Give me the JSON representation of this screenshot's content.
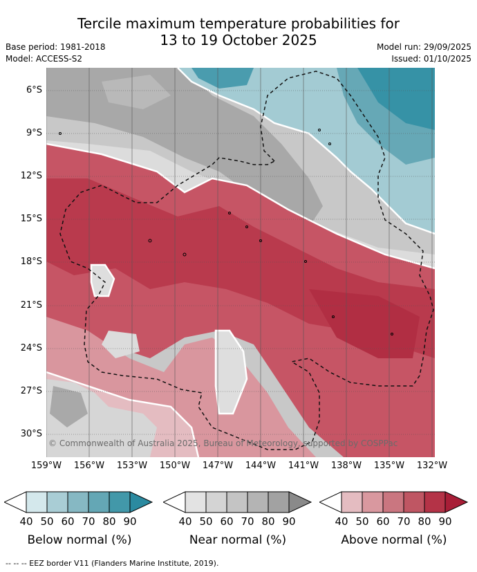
{
  "header": {
    "title_line1": "Tercile maximum temperature probabilities for",
    "title_line2": "13 to 19 October 2025",
    "base_period": "Base period: 1981-2018",
    "model": "Model: ACCESS-S2",
    "model_run": "Model run: 29/09/2025",
    "issued": "Issued: 01/10/2025"
  },
  "map": {
    "lat_labels": [
      "6°S",
      "9°S",
      "12°S",
      "15°S",
      "18°S",
      "21°S",
      "24°S",
      "27°S",
      "30°S"
    ],
    "lon_labels": [
      "159°W",
      "156°W",
      "153°W",
      "150°W",
      "147°W",
      "144°W",
      "141°W",
      "138°W",
      "135°W",
      "132°W"
    ],
    "copyright": "© Commonwealth of Australia 2025, Bureau of Meteorology, supported by COSPPac"
  },
  "legend": {
    "below": {
      "title": "Below normal (%)",
      "ticks": [
        "40",
        "50",
        "60",
        "70",
        "80",
        "90"
      ],
      "colors": [
        "#d4e8ec",
        "#a9cdd5",
        "#86b8c3",
        "#64a7b5",
        "#4298a9",
        "#2b8aa0"
      ]
    },
    "near": {
      "title": "Near normal (%)",
      "ticks": [
        "40",
        "50",
        "60",
        "70",
        "80",
        "90"
      ],
      "colors": [
        "#e3e3e3",
        "#d4d4d4",
        "#c4c4c4",
        "#b4b4b4",
        "#a2a2a2",
        "#8a8a8a"
      ]
    },
    "above": {
      "title": "Above normal (%)",
      "ticks": [
        "40",
        "50",
        "60",
        "70",
        "80",
        "90"
      ],
      "colors": [
        "#e4bcc1",
        "#d9989f",
        "#ca7680",
        "#bf5663",
        "#b43347",
        "#a81e37"
      ]
    }
  },
  "footer": {
    "eez_note": "--  --  -- EEZ border V11 (Flanders Marine Institute, 2019)."
  }
}
